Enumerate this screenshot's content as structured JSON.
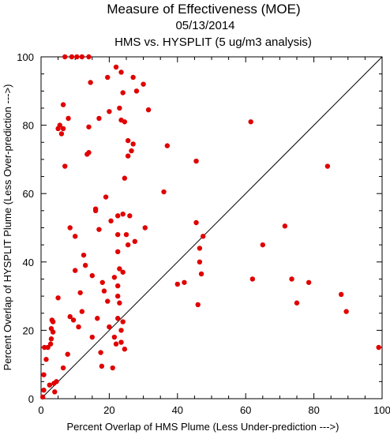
{
  "chart_data": {
    "type": "scatter",
    "title": "Measure of Effectiveness (MOE)",
    "subtitle_date": "05/13/2014",
    "subtitle_comparison": "HMS vs. HYSPLIT  (5 ug/m3 analysis)",
    "xlabel": "Percent Overlap of HMS Plume (Less Under-prediction --->)",
    "ylabel": "Percent Overlap of HYSPLIT Plume (Less Over-prediction --->)",
    "xlim": [
      0,
      100
    ],
    "ylim": [
      0,
      100
    ],
    "xticks": [
      "0",
      "20",
      "40",
      "60",
      "80",
      "100"
    ],
    "yticks": [
      "0",
      "20",
      "40",
      "60",
      "80",
      "100"
    ],
    "grid": false,
    "reference_line": "y = x",
    "point_color": "#e00000",
    "points": [
      [
        0.5,
        0.5
      ],
      [
        0.8,
        2.5
      ],
      [
        0.8,
        7.0
      ],
      [
        1.0,
        15.0
      ],
      [
        1.5,
        11.5
      ],
      [
        2.0,
        15.0
      ],
      [
        2.5,
        4.0
      ],
      [
        2.8,
        16.0
      ],
      [
        3.0,
        17.5
      ],
      [
        3.0,
        20.5
      ],
      [
        3.2,
        23.0
      ],
      [
        3.5,
        22.5
      ],
      [
        3.5,
        19.5
      ],
      [
        3.8,
        4.5
      ],
      [
        4.0,
        2.0
      ],
      [
        4.5,
        5.0
      ],
      [
        5.0,
        29.5
      ],
      [
        5.0,
        79.0
      ],
      [
        5.5,
        80.0
      ],
      [
        6.0,
        77.5
      ],
      [
        6.5,
        79.0
      ],
      [
        6.5,
        86.0
      ],
      [
        6.5,
        9.0
      ],
      [
        7.0,
        68.0
      ],
      [
        7.0,
        100.0
      ],
      [
        7.8,
        13.0
      ],
      [
        8.0,
        82.0
      ],
      [
        8.5,
        50.0
      ],
      [
        8.5,
        24.0
      ],
      [
        9.0,
        100.0
      ],
      [
        9.5,
        23.0
      ],
      [
        10.0,
        37.5
      ],
      [
        10.0,
        47.5
      ],
      [
        10.5,
        100.0
      ],
      [
        11.0,
        21.0
      ],
      [
        11.5,
        31.0
      ],
      [
        12.0,
        100.0
      ],
      [
        12.0,
        25.5
      ],
      [
        12.5,
        42.0
      ],
      [
        13.0,
        39.0
      ],
      [
        13.5,
        71.5
      ],
      [
        14.0,
        72.0
      ],
      [
        14.0,
        100.0
      ],
      [
        14.0,
        79.5
      ],
      [
        14.5,
        92.5
      ],
      [
        15.0,
        36.0
      ],
      [
        15.0,
        18.0
      ],
      [
        16.0,
        55.0
      ],
      [
        16.0,
        55.5
      ],
      [
        16.5,
        23.5
      ],
      [
        17.0,
        49.5
      ],
      [
        17.0,
        82.0
      ],
      [
        17.5,
        13.5
      ],
      [
        17.8,
        9.5
      ],
      [
        18.0,
        34.0
      ],
      [
        18.5,
        31.5
      ],
      [
        19.0,
        59.0
      ],
      [
        19.5,
        28.5
      ],
      [
        19.5,
        94.0
      ],
      [
        20.0,
        84.0
      ],
      [
        20.0,
        21.0
      ],
      [
        20.5,
        52.0
      ],
      [
        21.0,
        9.0
      ],
      [
        21.5,
        35.5
      ],
      [
        21.5,
        18.0
      ],
      [
        22.0,
        97.0
      ],
      [
        22.0,
        16.0
      ],
      [
        22.5,
        43.0
      ],
      [
        22.5,
        33.0
      ],
      [
        22.5,
        30.0
      ],
      [
        22.5,
        23.5
      ],
      [
        22.5,
        53.5
      ],
      [
        22.5,
        48.0
      ],
      [
        23.0,
        85.0
      ],
      [
        23.0,
        38.0
      ],
      [
        23.0,
        28.0
      ],
      [
        23.5,
        95.5
      ],
      [
        23.5,
        81.5
      ],
      [
        23.5,
        20.0
      ],
      [
        23.5,
        16.5
      ],
      [
        24.0,
        89.5
      ],
      [
        24.0,
        54.0
      ],
      [
        24.0,
        37.0
      ],
      [
        24.0,
        22.5
      ],
      [
        24.5,
        81.0
      ],
      [
        24.5,
        64.5
      ],
      [
        24.5,
        14.5
      ],
      [
        25.0,
        48.0
      ],
      [
        25.5,
        75.5
      ],
      [
        25.5,
        71.0
      ],
      [
        25.5,
        45.0
      ],
      [
        26.0,
        53.5
      ],
      [
        26.5,
        72.5
      ],
      [
        27.0,
        74.5
      ],
      [
        27.0,
        94.0
      ],
      [
        27.5,
        46.0
      ],
      [
        28.0,
        90.0
      ],
      [
        30.0,
        92.0
      ],
      [
        30.5,
        50.0
      ],
      [
        31.5,
        84.5
      ],
      [
        36.0,
        60.5
      ],
      [
        37.0,
        74.0
      ],
      [
        40.0,
        33.5
      ],
      [
        42.0,
        34.0
      ],
      [
        45.5,
        69.5
      ],
      [
        45.5,
        51.5
      ],
      [
        46.0,
        27.5
      ],
      [
        46.5,
        44.0
      ],
      [
        46.5,
        40.0
      ],
      [
        47.0,
        36.5
      ],
      [
        47.5,
        47.5
      ],
      [
        61.5,
        81.0
      ],
      [
        62.0,
        35.0
      ],
      [
        65.0,
        45.0
      ],
      [
        71.5,
        50.5
      ],
      [
        73.5,
        35.0
      ],
      [
        75.0,
        28.0
      ],
      [
        78.5,
        34.0
      ],
      [
        84.0,
        68.0
      ],
      [
        88.0,
        30.5
      ],
      [
        89.5,
        25.5
      ],
      [
        99.0,
        15.0
      ]
    ]
  }
}
